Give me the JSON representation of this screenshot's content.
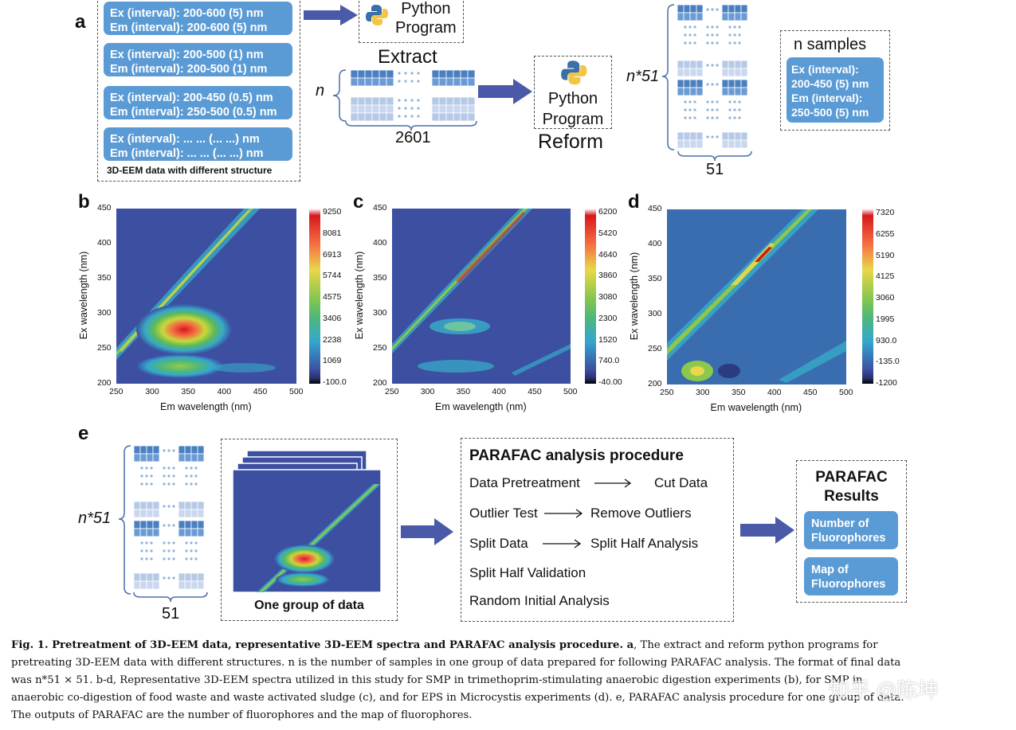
{
  "panel_a": {
    "letter": "a",
    "interval_boxes": [
      {
        "ex": "Ex (interval): 200-600 (5) nm",
        "em": "Em (interval): 200-600 (5) nm"
      },
      {
        "ex": "Ex (interval): 200-500 (1) nm",
        "em": "Em (interval): 200-500 (1) nm"
      },
      {
        "ex": "Ex (interval): 200-450 (0.5) nm",
        "em": "Em (interval): 250-500 (0.5) nm"
      },
      {
        "ex": "Ex (interval): ... ... (... ...) nm",
        "em": "Em (interval): ... ... (... ...) nm"
      }
    ],
    "group_caption": "3D-EEM data with different structure",
    "python_program_top": "Python\nProgram",
    "extract_label": "Extract",
    "n_label": "n",
    "columns_count": "2601",
    "python_program_mid": "Python\nProgram",
    "reform_label": "Reform",
    "n51_label": "n*51",
    "cols_51": "51",
    "n_samples_label": "n samples",
    "n_samples_box": [
      "Ex (interval):",
      "200-450 (5) nm",
      "Em (interval):",
      "250-500 (5) nm"
    ]
  },
  "panel_b": {
    "letter": "b",
    "xlabel": "Em wavelength (nm)",
    "ylabel": "Ex wavelength (nm)",
    "xticks": [
      "250",
      "300",
      "350",
      "400",
      "450",
      "500"
    ],
    "yticks": [
      "450",
      "400",
      "350",
      "300",
      "250",
      "200"
    ],
    "colorbar": [
      "9250",
      "8081",
      "6913",
      "5744",
      "4575",
      "3406",
      "2238",
      "1069",
      "-100.0"
    ]
  },
  "panel_c": {
    "letter": "c",
    "xlabel": "Em wavelength (nm)",
    "ylabel": "Ex wavelength (nm)",
    "xticks": [
      "250",
      "300",
      "350",
      "400",
      "450",
      "500"
    ],
    "yticks": [
      "450",
      "400",
      "350",
      "300",
      "250",
      "200"
    ],
    "colorbar": [
      "6200",
      "5420",
      "4640",
      "3860",
      "3080",
      "2300",
      "1520",
      "740.0",
      "-40.00"
    ]
  },
  "panel_d": {
    "letter": "d",
    "xlabel": "Em wavelength (nm)",
    "ylabel": "Ex wavelength (nm)",
    "xticks": [
      "250",
      "300",
      "350",
      "400",
      "450",
      "500"
    ],
    "yticks": [
      "450",
      "400",
      "350",
      "300",
      "250",
      "200"
    ],
    "colorbar": [
      "7320",
      "6255",
      "5190",
      "4125",
      "3060",
      "1995",
      "930.0",
      "-135.0",
      "-1200"
    ]
  },
  "panel_e": {
    "letter": "e",
    "n51_label": "n*51",
    "cols_51": "51",
    "group_label": "One group of data",
    "procedure_title": "PARAFAC analysis procedure",
    "steps": [
      {
        "left": "Data Pretreatment",
        "right": "Cut Data"
      },
      {
        "left": "Outlier Test",
        "right": "Remove Outliers"
      },
      {
        "left": "Split Data",
        "right": "Split Half Analysis"
      },
      {
        "left": "Split Half Validation",
        "right": ""
      },
      {
        "left": "Random Initial Analysis",
        "right": ""
      }
    ],
    "results_title": "PARAFAC\nResults",
    "results": [
      "Number of\nFluorophores",
      "Map of\nFluorophores"
    ]
  },
  "caption": {
    "line1_bold": "Fig. 1. Pretreatment of 3D-EEM data, representative 3D-EEM spectra and PARAFAC analysis procedure. a",
    "line1_rest": ", The extract and reform python programs for",
    "line2": "pretreating 3D-EEM data with different structures. n is the number of samples in one group of data prepared for following PARAFAC analysis. The format of final data",
    "line3": "was n*51 × 51. b-d, Representative 3D-EEM spectra utilized in this study for SMP in trimethoprim-stimulating anaerobic digestion experiments (b), for SMP in",
    "line4": "anaerobic co-digestion of food waste and waste activated sludge (c), and for EPS in Microcystis experiments (d). e, PARAFAC analysis procedure for one group of data.",
    "line5": "The outputs of PARAFAC are the number of fluorophores and the map of fluorophores."
  },
  "watermark": "知乎 @陈坤",
  "colors": {
    "box_blue": "#5b9bd5",
    "arrow_blue": "#4a5aa8",
    "plot_bg": "#3c4fa0"
  }
}
